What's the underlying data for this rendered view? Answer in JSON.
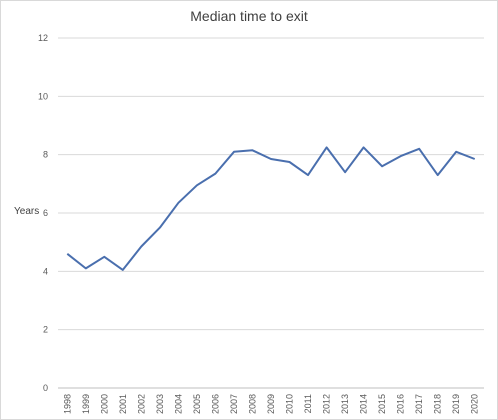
{
  "chart_data": {
    "type": "line",
    "title": "Median time to exit",
    "xlabel": "",
    "ylabel": "Years",
    "ylim": [
      0,
      12
    ],
    "yticks": [
      0,
      2,
      4,
      6,
      8,
      10,
      12
    ],
    "grid": true,
    "legend": "none",
    "categories": [
      "1998",
      "1999",
      "2000",
      "2001",
      "2002",
      "2003",
      "2004",
      "2005",
      "2006",
      "2007",
      "2008",
      "2009",
      "2010",
      "2011",
      "2012",
      "2013",
      "2014",
      "2015",
      "2016",
      "2017",
      "2018",
      "2019",
      "2020"
    ],
    "series": [
      {
        "values": [
          4.6,
          4.1,
          4.5,
          4.05,
          4.85,
          5.5,
          6.35,
          6.95,
          7.35,
          8.1,
          8.15,
          7.85,
          7.75,
          7.3,
          8.25,
          7.4,
          8.25,
          7.6,
          7.95,
          8.2,
          7.3,
          8.1,
          7.85
        ],
        "color": "#4a6fae"
      }
    ]
  }
}
